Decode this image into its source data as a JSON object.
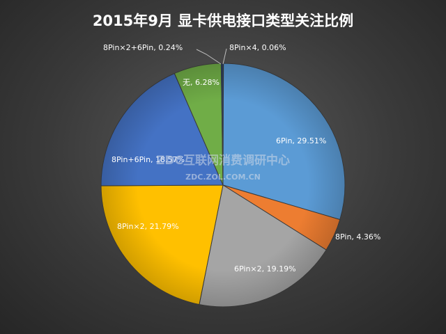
{
  "chart_data": {
    "type": "pie",
    "title": "2015年9月 显卡供电接口类型关注比例",
    "slices": [
      {
        "name": "8Pin×4",
        "value": 0.06,
        "label": "8Pin×4, 0.06%",
        "color": "#4a79b9"
      },
      {
        "name": "6Pin",
        "value": 29.51,
        "label": "6Pin, 29.51%",
        "color": "#5b9bd5"
      },
      {
        "name": "8Pin",
        "value": 4.36,
        "label": "8Pin, 4.36%",
        "color": "#ed7d31"
      },
      {
        "name": "6Pin×2",
        "value": 19.19,
        "label": "6Pin×2, 19.19%",
        "color": "#a5a5a5"
      },
      {
        "name": "8Pin×2",
        "value": 21.79,
        "label": "8Pin×2, 21.79%",
        "color": "#ffc000"
      },
      {
        "name": "8Pin+6Pin",
        "value": 18.57,
        "label": "8Pin+6Pin, 18.57%",
        "color": "#4472c4"
      },
      {
        "name": "无",
        "value": 6.28,
        "label": "无, 6.28%",
        "color": "#70ad47"
      },
      {
        "name": "8Pin×2+6Pin",
        "value": 0.24,
        "label": "8Pin×2+6Pin, 0.24%",
        "color": "#264478"
      }
    ]
  },
  "watermark": {
    "main": "ZDC互联网消费调研中心",
    "sub": "ZDC.ZOL.COM.CN"
  }
}
